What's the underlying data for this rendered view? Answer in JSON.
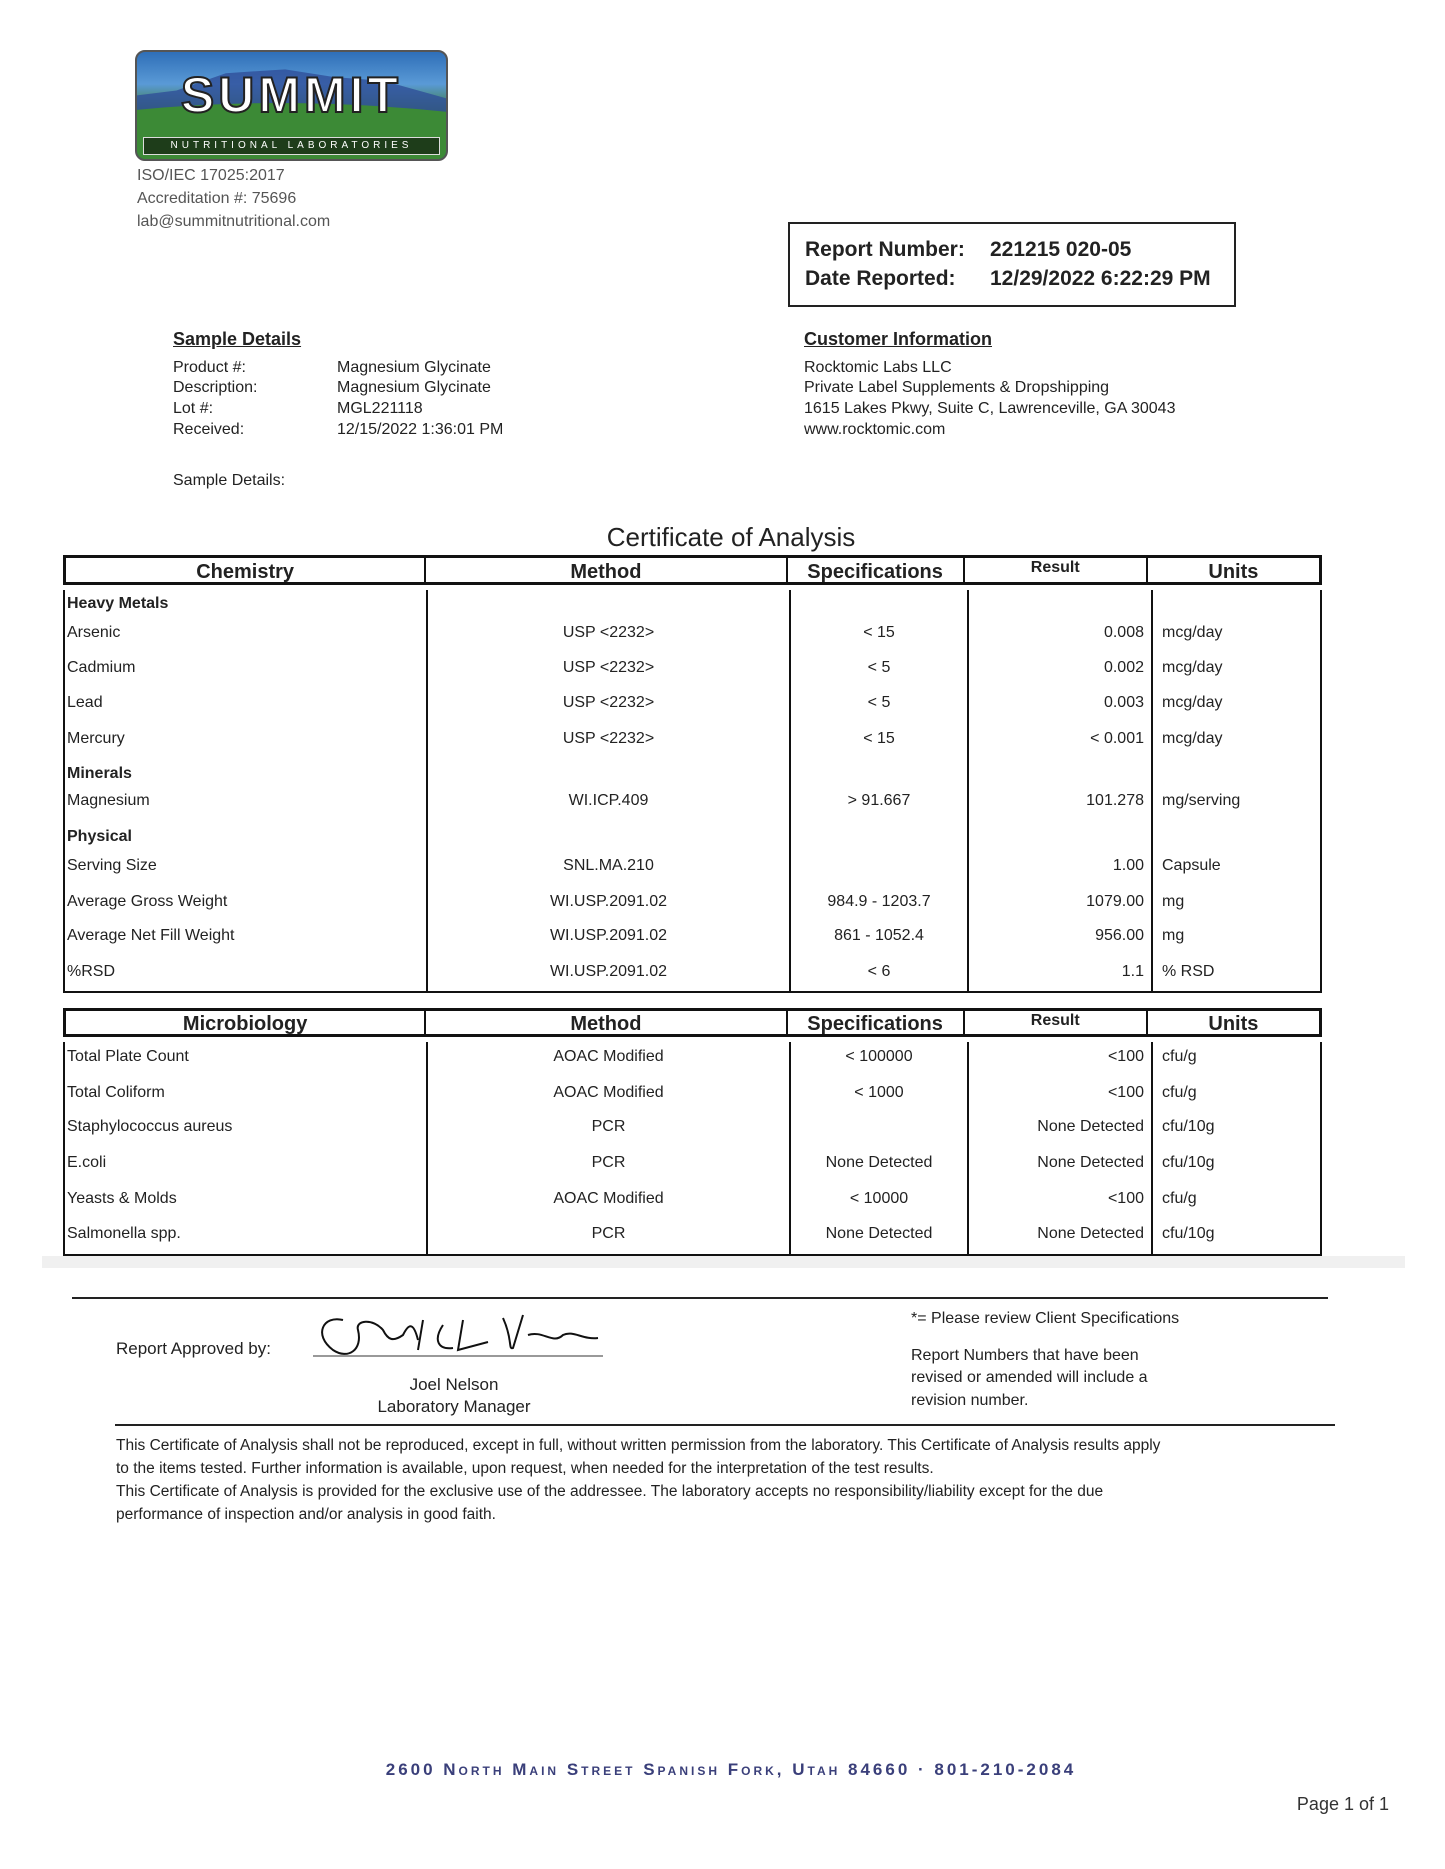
{
  "lab": {
    "logo_text": "SUMMIT",
    "logo_subtext": "NUTRITIONAL LABORATORIES",
    "iso": "ISO/IEC 17025:2017",
    "accreditation": "Accreditation #: 75696",
    "email": "lab@summitnutritional.com"
  },
  "report": {
    "number_label": "Report Number:",
    "number": "221215 020-05",
    "date_label": "Date Reported:",
    "date": "12/29/2022 6:22:29 PM"
  },
  "sample": {
    "heading": "Sample Details",
    "rows": [
      {
        "label": "Product #:",
        "value": "Magnesium Glycinate"
      },
      {
        "label": "Description:",
        "value": "Magnesium Glycinate"
      },
      {
        "label": "Lot #:",
        "value": "MGL221118"
      },
      {
        "label": "Received:",
        "value": "12/15/2022 1:36:01 PM"
      }
    ],
    "details_label": "Sample Details:"
  },
  "customer": {
    "heading": "Customer Information",
    "lines": [
      "Rocktomic Labs LLC",
      "Private Label Supplements & Dropshipping",
      "1615 Lakes Pkwy, Suite C, Lawrenceville, GA 30043",
      "www.rocktomic.com"
    ]
  },
  "title": "Certificate of Analysis",
  "chemistry": {
    "headers": [
      "Chemistry",
      "Method",
      "Specifications",
      "Result",
      "Units"
    ],
    "rows": [
      {
        "group": "Heavy Metals"
      },
      {
        "name": "Arsenic",
        "method": "USP <2232>",
        "spec": "< 15",
        "result": "0.008",
        "units": "mcg/day"
      },
      {
        "name": "Cadmium",
        "method": "USP <2232>",
        "spec": "< 5",
        "result": "0.002",
        "units": "mcg/day"
      },
      {
        "name": "Lead",
        "method": "USP <2232>",
        "spec": "< 5",
        "result": "0.003",
        "units": "mcg/day"
      },
      {
        "name": "Mercury",
        "method": "USP <2232>",
        "spec": "< 15",
        "result": "< 0.001",
        "units": "mcg/day"
      },
      {
        "group": "Minerals"
      },
      {
        "name": "Magnesium",
        "method": "WI.ICP.409",
        "spec": "> 91.667",
        "result": "101.278",
        "units": "mg/serving"
      },
      {
        "group": "Physical"
      },
      {
        "name": "Serving Size",
        "method": "SNL.MA.210",
        "spec": "",
        "result": "1.00",
        "units": "Capsule"
      },
      {
        "name": "Average Gross Weight",
        "method": "WI.USP.2091.02",
        "spec": "984.9 - 1203.7",
        "result": "1079.00",
        "units": "mg"
      },
      {
        "name": "Average Net Fill Weight",
        "method": "WI.USP.2091.02",
        "spec": "861 - 1052.4",
        "result": "956.00",
        "units": "mg"
      },
      {
        "name": "%RSD",
        "method": "WI.USP.2091.02",
        "spec": "< 6",
        "result": "1.1",
        "units": "% RSD"
      }
    ]
  },
  "micro": {
    "headers": [
      "Microbiology",
      "Method",
      "Specifications",
      "Result",
      "Units"
    ],
    "rows": [
      {
        "name": "Total Plate Count",
        "method": "AOAC Modified",
        "spec": "< 100000",
        "result": "<100",
        "units": "cfu/g"
      },
      {
        "name": "Total Coliform",
        "method": "AOAC Modified",
        "spec": "< 1000",
        "result": "<100",
        "units": "cfu/g"
      },
      {
        "name": "Staphylococcus aureus",
        "method": "PCR",
        "spec": "",
        "result": "None Detected",
        "units": "cfu/10g"
      },
      {
        "name": "E.coli",
        "method": "PCR",
        "spec": "None Detected",
        "result": "None Detected",
        "units": "cfu/10g"
      },
      {
        "name": "Yeasts & Molds",
        "method": "AOAC Modified",
        "spec": "< 10000",
        "result": "<100",
        "units": "cfu/g"
      },
      {
        "name": "Salmonella spp.",
        "method": "PCR",
        "spec": "None Detected",
        "result": "None Detected",
        "units": "cfu/10g"
      }
    ]
  },
  "approval": {
    "label": "Report Approved by:",
    "signature": "Joel L Nelson",
    "name": "Joel Nelson",
    "role": "Laboratory Manager",
    "note1": "*= Please review Client Specifications",
    "note2": [
      "Report Numbers that have been",
      "revised or amended will include a",
      "revision number."
    ]
  },
  "disclaimer": [
    "This Certificate of Analysis shall not be reproduced, except in full, without written permission from the laboratory. This Certificate of Analysis results apply",
    "to the items tested. Further information is available, upon request, when needed for the interpretation of the test results.",
    "This Certificate of Analysis is provided for the exclusive use of the addressee. The laboratory accepts no responsibility/liability except for the due",
    "performance of inspection and/or analysis in good faith."
  ],
  "footer": {
    "address": "2600 North Main Street  Spanish Fork, Utah  84660 · 801-210-2084",
    "page": "Page 1 of 1",
    "address_color": "#3a3f7a"
  }
}
